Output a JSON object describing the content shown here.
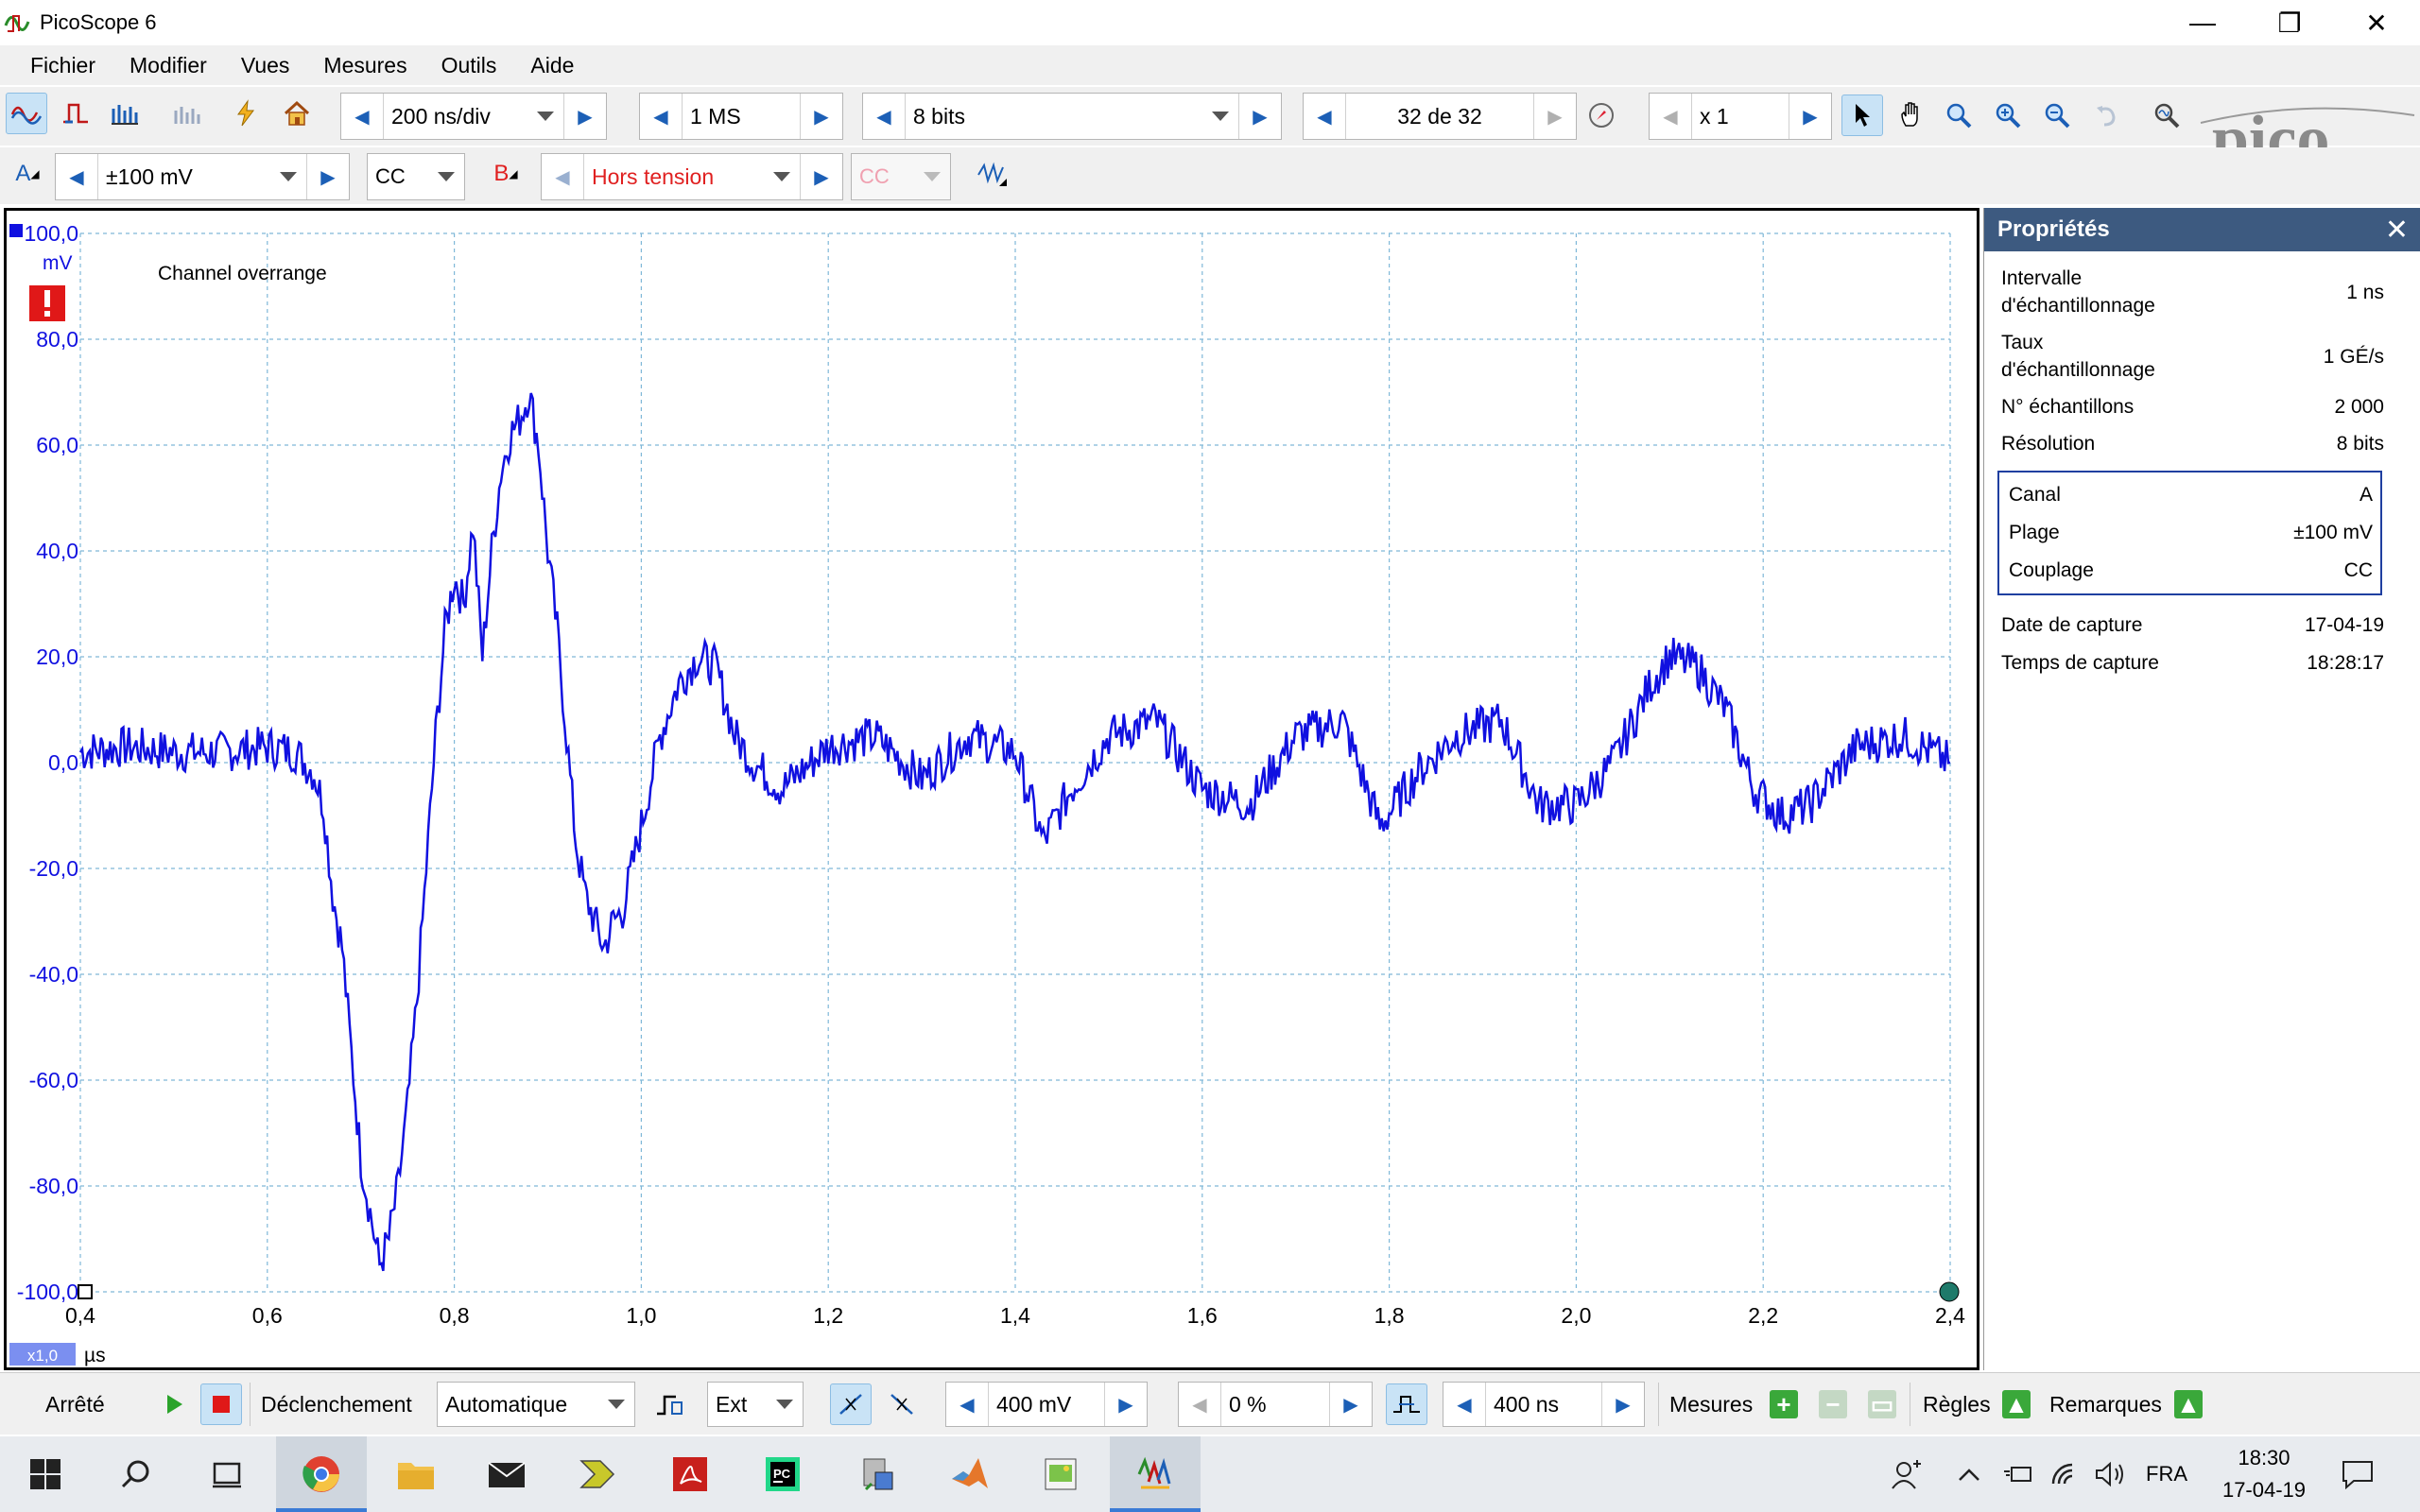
{
  "window": {
    "title": "PicoScope 6",
    "controls": [
      "—",
      "❐",
      "✕"
    ]
  },
  "menu": [
    "Fichier",
    "Modifier",
    "Vues",
    "Mesures",
    "Outils",
    "Aide"
  ],
  "toolbar1": {
    "timebase": "200 ns/div",
    "samples": "1 MS",
    "resolution": "8 bits",
    "buffer": "32 de 32",
    "zoom": "x 1"
  },
  "toolbar2": {
    "channel_a": {
      "label": "A",
      "range": "±100 mV",
      "coupling": "CC"
    },
    "channel_b": {
      "label": "B",
      "range": "Hors tension",
      "coupling": "CC"
    }
  },
  "scope": {
    "overrange_message": "Channel overrange",
    "y_unit": "mV",
    "x_unit": "µs",
    "zoom_tag": "x1,0"
  },
  "chart_data": {
    "type": "line",
    "title": "",
    "xlabel": "µs",
    "ylabel": "mV",
    "xlim": [
      0.4,
      2.4
    ],
    "ylim": [
      -100,
      100
    ],
    "x_ticks": [
      "0,4",
      "0,6",
      "0,8",
      "1,0",
      "1,2",
      "1,4",
      "1,6",
      "1,8",
      "2,0",
      "2,2",
      "2,4"
    ],
    "y_ticks": [
      "100,0",
      "80,0",
      "60,0",
      "40,0",
      "20,0",
      "0,0",
      "-20,0",
      "-40,0",
      "-60,0",
      "-80,0",
      "-100,0"
    ],
    "grid": true,
    "series_color": "#1010e0",
    "series": [
      {
        "channel": "A",
        "x": [
          0.4,
          0.45,
          0.5,
          0.55,
          0.6,
          0.63,
          0.65,
          0.66,
          0.67,
          0.68,
          0.69,
          0.7,
          0.71,
          0.72,
          0.73,
          0.74,
          0.75,
          0.76,
          0.77,
          0.78,
          0.79,
          0.8,
          0.81,
          0.82,
          0.83,
          0.84,
          0.85,
          0.86,
          0.87,
          0.88,
          0.89,
          0.9,
          0.91,
          0.92,
          0.93,
          0.94,
          0.95,
          0.96,
          0.97,
          0.98,
          0.99,
          1.0,
          1.02,
          1.04,
          1.06,
          1.08,
          1.1,
          1.12,
          1.15,
          1.2,
          1.25,
          1.3,
          1.35,
          1.4,
          1.43,
          1.46,
          1.5,
          1.55,
          1.6,
          1.65,
          1.7,
          1.75,
          1.79,
          1.83,
          1.87,
          1.92,
          1.96,
          2.0,
          2.04,
          2.08,
          2.1,
          2.13,
          2.16,
          2.19,
          2.22,
          2.25,
          2.3,
          2.35,
          2.4
        ],
        "y": [
          2,
          3,
          2,
          2,
          3,
          2,
          -2,
          -8,
          -25,
          -35,
          -55,
          -75,
          -85,
          -95,
          -90,
          -80,
          -65,
          -45,
          -20,
          5,
          25,
          35,
          30,
          45,
          20,
          40,
          55,
          62,
          65,
          70,
          60,
          40,
          25,
          5,
          -15,
          -25,
          -30,
          -35,
          -30,
          -28,
          -20,
          -12,
          5,
          15,
          20,
          18,
          5,
          0,
          -5,
          3,
          5,
          -3,
          5,
          2,
          -15,
          -5,
          5,
          8,
          -5,
          -8,
          5,
          8,
          -12,
          -2,
          5,
          8,
          -8,
          -8,
          0,
          15,
          20,
          18,
          10,
          -5,
          -10,
          -8,
          3,
          5,
          0
        ]
      }
    ]
  },
  "properties": {
    "title": "Propriétés",
    "rows": [
      {
        "label": "Intervalle d'échantillonnage",
        "value": "1 ns"
      },
      {
        "label": "Taux d'échantillonnage",
        "value": "1 GÉ/s"
      },
      {
        "label": "N° échantillons",
        "value": "2 000"
      },
      {
        "label": "Résolution",
        "value": "8 bits"
      }
    ],
    "channel_box": [
      {
        "label": "Canal",
        "value": "A"
      },
      {
        "label": "Plage",
        "value": "±100 mV"
      },
      {
        "label": "Couplage",
        "value": "CC"
      }
    ],
    "capture": [
      {
        "label": "Date de capture",
        "value": "17-04-19"
      },
      {
        "label": "Temps de capture",
        "value": "18:28:17"
      }
    ]
  },
  "bottombar": {
    "status": "Arrêté",
    "trigger_label": "Déclenchement",
    "trigger_mode": "Automatique",
    "trigger_source": "Ext",
    "threshold": "400 mV",
    "pretrigger": "0 %",
    "delay": "400 ns",
    "measures": "Mesures",
    "rulers": "Règles",
    "notes": "Remarques"
  },
  "taskbar": {
    "language": "FRA",
    "time": "18:30",
    "date": "17-04-19"
  },
  "colors": {
    "trace": "#1010e0",
    "grid": "#7fb8d8",
    "properties_header": "#3d5a80",
    "channel_b": "#e02020"
  }
}
